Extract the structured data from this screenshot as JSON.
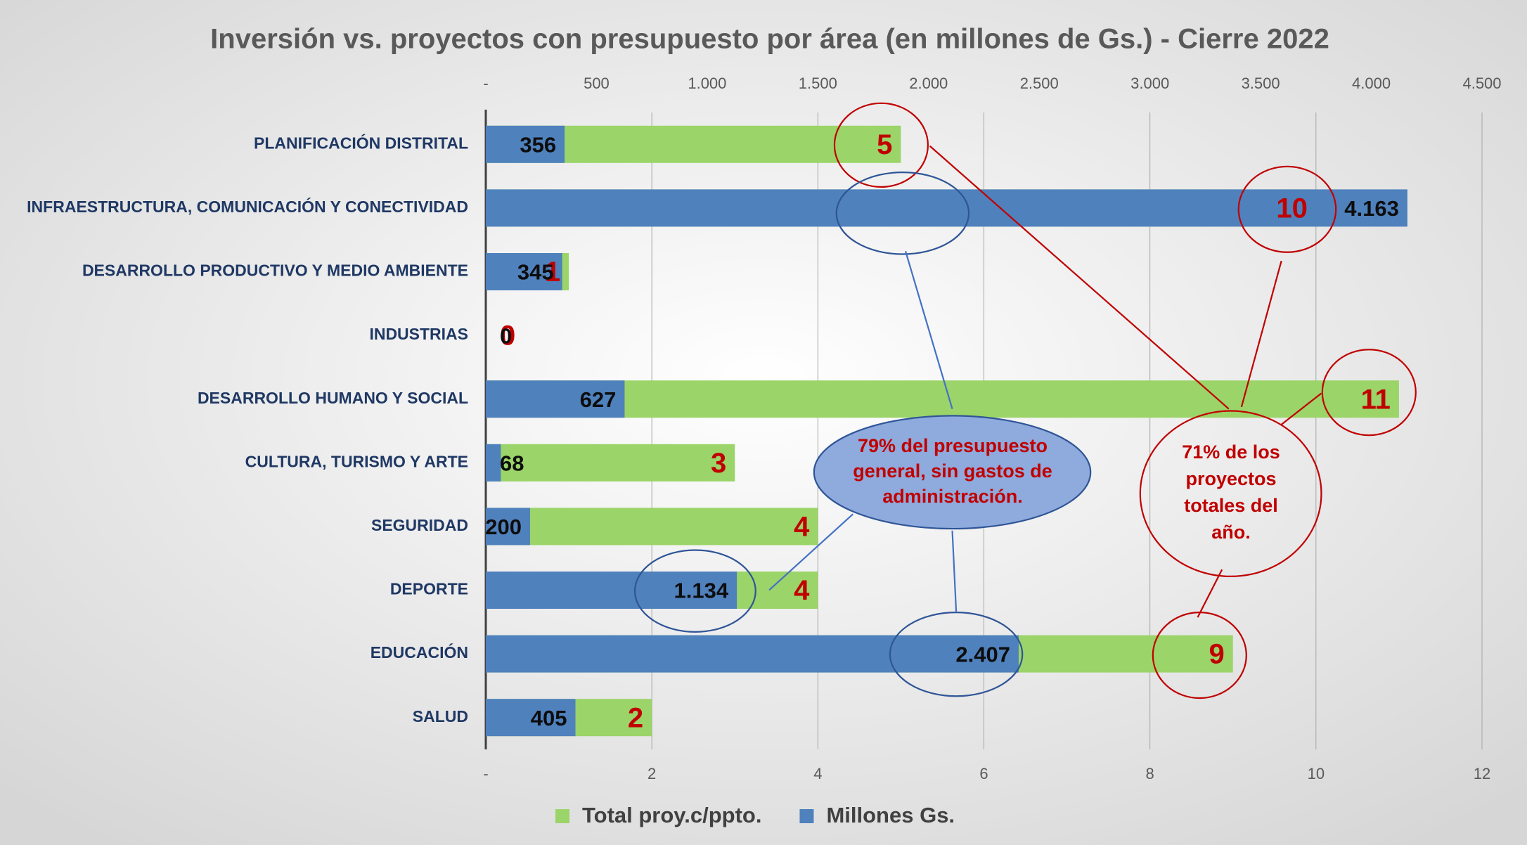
{
  "chart_data": {
    "type": "bar",
    "orientation": "horizontal",
    "title": "Inversión vs. proyectos con presupuesto por área (en millones de Gs.) - Cierre 2022",
    "categories": [
      "PLANIFICACIÓN DISTRITAL",
      "INFRAESTRUCTURA, COMUNICACIÓN Y CONECTIVIDAD",
      "DESARROLLO PRODUCTIVO Y MEDIO AMBIENTE",
      "INDUSTRIAS",
      "DESARROLLO HUMANO Y SOCIAL",
      "CULTURA, TURISMO Y ARTE",
      "SEGURIDAD",
      "DEPORTE",
      "EDUCACIÓN",
      "SALUD"
    ],
    "series": [
      {
        "name": "Total proy.c/ppto.",
        "color": "#9bd468",
        "axis": "x",
        "values": [
          5,
          10,
          1,
          0,
          11,
          3,
          4,
          4,
          9,
          2
        ]
      },
      {
        "name": "Millones Gs.",
        "color": "#4f81bd",
        "axis": "x2",
        "values": [
          356,
          4163,
          345,
          0,
          627,
          68,
          200,
          1134,
          2407,
          405
        ],
        "value_labels": [
          "356",
          "4.163",
          "345",
          "0",
          "627",
          "68",
          "200",
          "1.134",
          "2.407",
          "405"
        ]
      }
    ],
    "xlim": [
      0,
      12
    ],
    "xticks": [
      {
        "value": 0,
        "label": "-"
      },
      2,
      4,
      6,
      8,
      10,
      12
    ],
    "x2lim": [
      0,
      4500
    ],
    "x2ticks": [
      {
        "value": 0,
        "label": "-"
      },
      500,
      {
        "value": 1000,
        "label": "1.000"
      },
      {
        "value": 1500,
        "label": "1.500"
      },
      {
        "value": 2000,
        "label": "2.000"
      },
      {
        "value": 2500,
        "label": "2.500"
      },
      {
        "value": 3000,
        "label": "3.000"
      },
      {
        "value": 3500,
        "label": "3.500"
      },
      {
        "value": 4000,
        "label": "4.000"
      },
      {
        "value": 4500,
        "label": "4.500"
      }
    ],
    "grid": true,
    "legend": "bottom",
    "annotations": [
      {
        "lines": [
          "79% del presupuesto",
          "general, sin gastos de",
          "administración."
        ]
      },
      {
        "lines": [
          "71% de los",
          "proyectos",
          "totales del",
          "año."
        ]
      }
    ]
  }
}
